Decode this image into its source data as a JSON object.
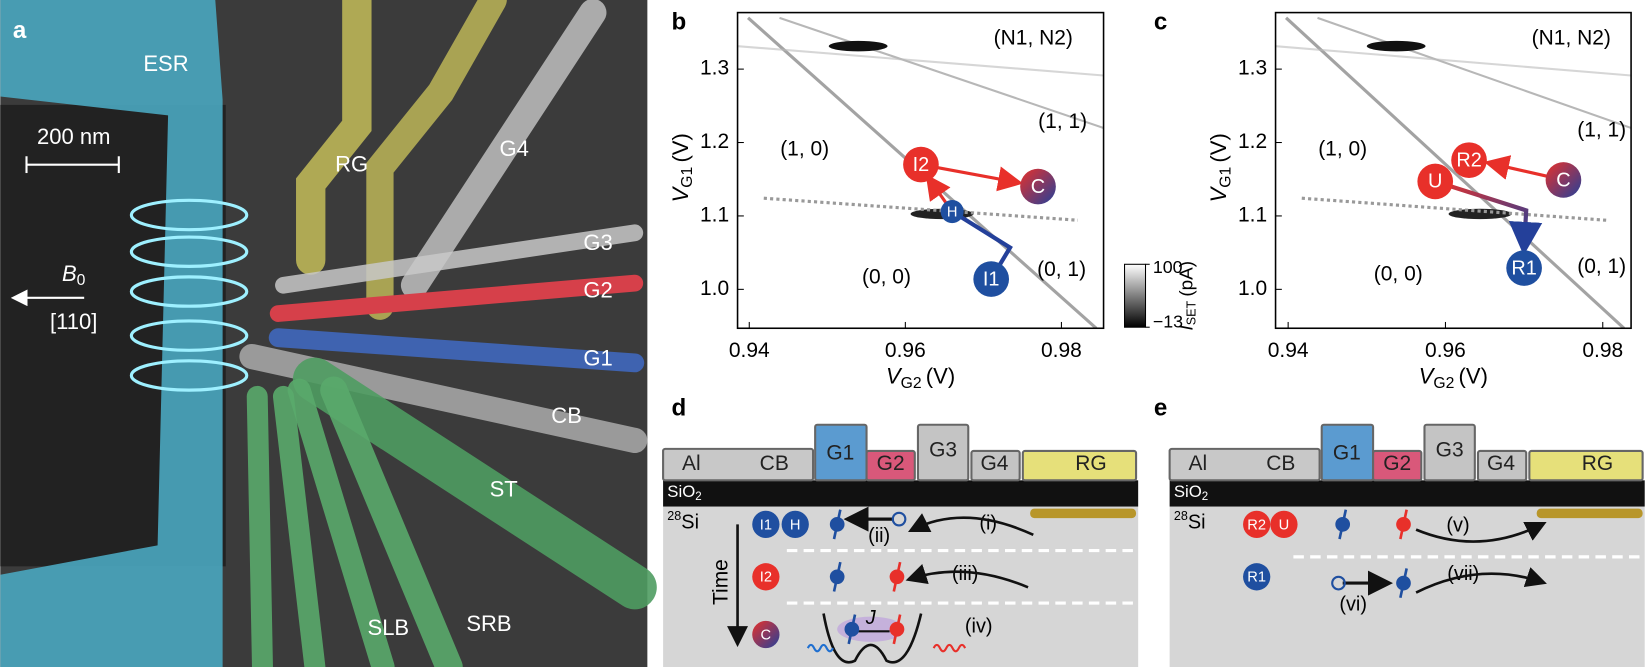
{
  "panel_labels": [
    "a",
    "b",
    "c",
    "d",
    "e"
  ],
  "panel_a": {
    "esr": "ESR",
    "scale": "200 nm",
    "field_symbol": "B",
    "field_subscript": "0",
    "direction": "[110]",
    "gates": [
      "RG",
      "G4",
      "G3",
      "G2",
      "G1",
      "CB",
      "ST",
      "SLB",
      "SRB"
    ]
  },
  "chart_data": [
    {
      "type": "scatter",
      "xlabel": {
        "symbol": "V",
        "subscript": "G2",
        "unit": "(V)"
      },
      "ylabel": {
        "symbol": "V",
        "subscript": "G1",
        "unit": "(V)"
      },
      "xlim": [
        0.9385,
        0.9854
      ],
      "ylim": [
        0.947,
        1.377
      ],
      "xticks": [
        0.94,
        0.96,
        0.98
      ],
      "yticks": [
        {
          "value": 1,
          "label": "1.0"
        },
        1.1,
        1.2,
        1.3
      ],
      "regions": [
        "(N1, N2)",
        "(1, 1)",
        "(1, 0)",
        "(0, 0)",
        "(0, 1)"
      ],
      "points": [
        {
          "label": "I2",
          "x": 0.962,
          "y": 1.17,
          "color": "#e8302a"
        },
        {
          "label": "C",
          "x": 0.977,
          "y": 1.14,
          "color": [
            "#e8302a",
            "#24409a"
          ]
        },
        {
          "label": "H",
          "x": 0.966,
          "y": 1.106,
          "color": "#1f4fa0"
        },
        {
          "label": "I1",
          "x": 0.971,
          "y": 1.014,
          "color": "#1f4fa0"
        }
      ]
    },
    {
      "type": "scatter",
      "xlabel": {
        "symbol": "V",
        "subscript": "G2",
        "unit": "(V)"
      },
      "ylabel": {
        "symbol": "V",
        "subscript": "G1",
        "unit": "(V)"
      },
      "xlim": [
        0.9384,
        0.9836
      ],
      "ylim": [
        0.947,
        1.377
      ],
      "xticks": [
        0.94,
        0.96,
        0.98
      ],
      "yticks": [
        {
          "value": 1,
          "label": "1.0"
        },
        1.1,
        1.2,
        1.3
      ],
      "regions": [
        "(N1, N2)",
        "(1, 1)",
        "(1, 0)",
        "(0, 0)",
        "(0, 1)"
      ],
      "points": [
        {
          "label": "R2",
          "x": 0.963,
          "y": 1.176,
          "color": "#e8302a"
        },
        {
          "label": "C",
          "x": 0.975,
          "y": 1.149,
          "color": [
            "#e8302a",
            "#24409a"
          ]
        },
        {
          "label": "U",
          "x": 0.9587,
          "y": 1.147,
          "color": "#e8302a"
        },
        {
          "label": "R1",
          "x": 0.97,
          "y": 1.029,
          "color": "#1f4fa0"
        }
      ]
    }
  ],
  "colorbar": {
    "clim": [
      -13,
      100
    ],
    "ticks": [
      {
        "value": -13,
        "label": "−13"
      },
      100
    ],
    "label": {
      "symbol": "I",
      "subscript": "SET",
      "unit": "(pA)"
    }
  },
  "panel_d": {
    "gates": [
      "Al",
      "CB",
      "G1",
      "G2",
      "G3",
      "G4",
      "RG"
    ],
    "oxide": {
      "base": "SiO",
      "subscript": "2"
    },
    "substrate": {
      "superscript": "28",
      "base": "Si"
    },
    "states": [
      "I1",
      "H",
      "I2",
      "C"
    ],
    "time": "Time",
    "steps": [
      "(i)",
      "(ii)",
      "(iii)",
      "(iv)"
    ],
    "coupling": "J"
  },
  "panel_e": {
    "gates": [
      "Al",
      "CB",
      "G1",
      "G2",
      "G3",
      "G4",
      "RG"
    ],
    "oxide": {
      "base": "SiO",
      "subscript": "2"
    },
    "substrate": {
      "superscript": "28",
      "base": "Si"
    },
    "states": [
      "R2",
      "U",
      "R1"
    ],
    "steps": [
      "(v)",
      "(vi)",
      "(vii)"
    ]
  }
}
